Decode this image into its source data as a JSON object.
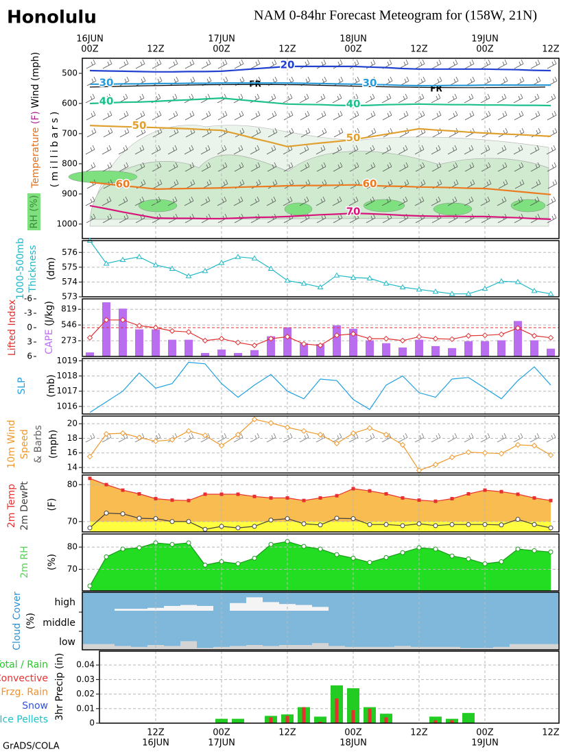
{
  "title": "Honolulu",
  "subtitle": "NAM 0-84hr Forecast Meteogram for (158W, 21N)",
  "credit": "GrADS/COLA",
  "time_axis": {
    "top_dates": [
      "16JUN",
      null,
      null,
      null,
      null,
      null,
      null,
      null,
      "17JUN",
      null,
      null,
      null,
      null,
      null,
      null,
      null,
      "18JUN",
      null,
      null,
      null,
      null,
      null,
      null,
      null,
      "19JUN",
      null,
      null,
      null,
      null
    ],
    "top_hours": [
      "00Z",
      null,
      null,
      null,
      "12Z",
      null,
      null,
      null,
      "00Z",
      null,
      null,
      null,
      "12Z",
      null,
      null,
      null,
      "00Z",
      null,
      null,
      null,
      "12Z",
      null,
      null,
      null,
      "00Z",
      null,
      null,
      null,
      "12Z"
    ],
    "bottom_hours": [
      null,
      null,
      null,
      null,
      "12Z",
      null,
      null,
      null,
      "00Z",
      null,
      null,
      null,
      "12Z",
      null,
      null,
      null,
      "00Z",
      null,
      null,
      null,
      "12Z",
      null,
      null,
      null,
      "00Z",
      null,
      null,
      null,
      "12Z"
    ],
    "bottom_dates": [
      null,
      null,
      null,
      null,
      "16JUN",
      null,
      null,
      null,
      "17JUN",
      null,
      null,
      null,
      null,
      null,
      null,
      null,
      "18JUN",
      null,
      null,
      null,
      null,
      null,
      null,
      null,
      "19JUN",
      null,
      null,
      null,
      null
    ]
  },
  "chart_data": [
    {
      "type": "line",
      "ylabel": [
        "Temperature",
        "(F)",
        "Wind (mph)"
      ],
      "ylabel2": "(millibars)",
      "shading_label": "RH (%)",
      "ylim": [
        1048,
        450
      ],
      "yticks": [
        500,
        600,
        700,
        800,
        900,
        1000
      ],
      "grid": false,
      "annotations": [
        "FR",
        "FR"
      ],
      "series": [
        {
          "name": "20",
          "color": "#2040d0",
          "values": [
            491,
            492,
            493,
            494,
            495,
            495,
            494,
            494,
            493,
            489,
            485,
            481,
            477,
            477,
            477,
            477,
            477,
            479,
            481,
            484,
            486,
            486,
            486,
            486,
            486,
            487,
            488,
            490,
            491
          ]
        },
        {
          "name": "30",
          "color": "#2a9ad8",
          "values": [
            536,
            536,
            535,
            535,
            534,
            534,
            533,
            533,
            532,
            532,
            532,
            532,
            532,
            533,
            534,
            535,
            536,
            537,
            538,
            540,
            541,
            541,
            540,
            540,
            539,
            539,
            539,
            539,
            539
          ]
        },
        {
          "name": "40",
          "color": "#1cc08c",
          "values": [
            600,
            598,
            596,
            595,
            593,
            590,
            588,
            585,
            582,
            587,
            592,
            597,
            602,
            603,
            604,
            606,
            607,
            606,
            604,
            603,
            602,
            603,
            604,
            604,
            605,
            605,
            606,
            606,
            607
          ]
        },
        {
          "name": "50",
          "color": "#e0a030",
          "values": [
            673,
            675,
            677,
            678,
            680,
            682,
            684,
            687,
            689,
            702,
            716,
            729,
            743,
            737,
            731,
            726,
            720,
            711,
            702,
            693,
            684,
            688,
            691,
            695,
            698,
            701,
            703,
            706,
            709
          ]
        },
        {
          "name": "60",
          "color": "#ec7a20",
          "values": [
            861,
            867,
            873,
            878,
            884,
            883,
            882,
            881,
            880,
            878,
            876,
            875,
            873,
            872,
            872,
            871,
            870,
            872,
            874,
            875,
            877,
            878,
            879,
            881,
            882,
            887,
            892,
            897,
            902
          ]
        },
        {
          "name": "70",
          "color": "#d8147c",
          "values": [
            939,
            949,
            960,
            970,
            980,
            981,
            981,
            982,
            982,
            980,
            978,
            977,
            975,
            972,
            969,
            967,
            964,
            966,
            968,
            971,
            973,
            974,
            974,
            975,
            975,
            977,
            979,
            982,
            984
          ]
        }
      ]
    },
    {
      "type": "line",
      "ylabel": [
        "1000-500mb",
        "Thickness",
        "(dm)"
      ],
      "ylim": [
        573,
        576.8
      ],
      "yticks": [
        573,
        574,
        575,
        576
      ],
      "grid": true,
      "series": [
        {
          "color": "#20b8c8",
          "marker": "triangle",
          "values": [
            576.8,
            575.25,
            575.5,
            575.7,
            575.15,
            574.9,
            574.4,
            574.75,
            575.3,
            575.7,
            575.6,
            574.9,
            574.1,
            573.9,
            573.65,
            574.45,
            574.3,
            574.25,
            573.9,
            573.65,
            573.5,
            573.35,
            573.2,
            573.2,
            573.55,
            574.05,
            574.0,
            573.4,
            573.2
          ]
        }
      ]
    },
    {
      "type": "combo",
      "ylabel": [
        "Lifted Index",
        "CAPE",
        "(J/kg)"
      ],
      "ylim": [
        6,
        -6
      ],
      "yticks": [
        -6,
        -3,
        0,
        3,
        6
      ],
      "y2lim": [
        0,
        1000
      ],
      "y2ticks": [
        273,
        546,
        819
      ],
      "grid": true,
      "series": [
        {
          "color": "#b96ef0",
          "axis": "y2",
          "kind": "bar",
          "values": [
            70,
            940,
            830,
            470,
            470,
            290,
            290,
            60,
            120,
            60,
            110,
            350,
            505,
            230,
            215,
            540,
            480,
            280,
            230,
            155,
            290,
            180,
            145,
            265,
            265,
            280,
            615,
            280,
            135
          ]
        },
        {
          "color": "#e03030",
          "marker": "diamond",
          "values": [
            2.1,
            -1.6,
            -1.6,
            -0.4,
            0,
            0.7,
            0.9,
            2.7,
            2.3,
            3.1,
            3.7,
            2.3,
            1.9,
            3.4,
            3.7,
            1.6,
            1.3,
            2.3,
            2.3,
            2.7,
            1.9,
            2.3,
            2.4,
            1.7,
            1.6,
            1.4,
            0.1,
            1.7,
            2.1
          ]
        }
      ]
    },
    {
      "type": "line",
      "ylabel": [
        "SLP",
        "(mb)"
      ],
      "ylim": [
        1015.5,
        1019.15
      ],
      "yticks": [
        1016,
        1017,
        1018,
        1019
      ],
      "grid": true,
      "series": [
        {
          "color": "#1ea0e0",
          "values": [
            1015.6,
            1016.3,
            1017.0,
            1018.2,
            1017.2,
            1017.5,
            1018.9,
            1018.8,
            1017.5,
            1016.6,
            1017.4,
            1018.1,
            1017.0,
            1016.5,
            1017.8,
            1017.7,
            1016.45,
            1015.8,
            1017.4,
            1018.0,
            1016.9,
            1016.6,
            1017.8,
            1017.9,
            1017.2,
            1016.5,
            1017.7,
            1018.6,
            1017.4
          ]
        }
      ]
    },
    {
      "type": "line",
      "ylabel": [
        "10m Wind",
        "Speed",
        "& Barbs",
        "(mph)"
      ],
      "ylim": [
        13.25,
        21.05
      ],
      "yticks": [
        14,
        16,
        18,
        20
      ],
      "grid": true,
      "series": [
        {
          "color": "#f0982a",
          "marker": "diamond",
          "values": [
            15.5,
            18.6,
            18.7,
            18.1,
            17.6,
            17.8,
            19.0,
            18.4,
            17.0,
            18.5,
            20.6,
            20.1,
            19.5,
            19.0,
            18.5,
            17.3,
            18.7,
            19.4,
            18.5,
            17.1,
            13.6,
            14.4,
            15.4,
            16.1,
            16.0,
            15.9,
            17.1,
            17.0,
            15.7
          ]
        }
      ]
    },
    {
      "type": "area",
      "ylabel": [
        "2m Temp",
        "2m DewPt",
        "(F)"
      ],
      "ylim": [
        67.2,
        82.6
      ],
      "yticks": [
        70,
        80
      ],
      "grid": true,
      "series": [
        {
          "color": "#e83030",
          "fill": "#f9bc50",
          "marker": "square",
          "values": [
            81.7,
            80.0,
            78.5,
            77.5,
            76.2,
            75.8,
            75.7,
            77.4,
            77.4,
            77.4,
            76.8,
            76.4,
            76.4,
            75.7,
            76.4,
            77.0,
            78.9,
            78.3,
            77.5,
            76.4,
            75.8,
            75.5,
            76.2,
            77.5,
            78.5,
            78.1,
            77.4,
            76.4,
            75.7
          ]
        },
        {
          "color": "#404040",
          "fill": "#ffff40",
          "marker": "circle",
          "values": [
            68.3,
            72.3,
            72.1,
            70.9,
            70.8,
            70.0,
            70.0,
            67.9,
            68.7,
            68.3,
            68.7,
            70.4,
            70.8,
            69.4,
            69.1,
            70.9,
            70.8,
            69.2,
            69.2,
            68.9,
            69.4,
            68.9,
            69.2,
            69.2,
            69.2,
            69.1,
            70.6,
            69.2,
            68.3
          ]
        }
      ]
    },
    {
      "type": "area",
      "ylabel": [
        "2m RH",
        "(%)"
      ],
      "ylim": [
        60.3,
        85.9
      ],
      "yticks": [
        70,
        80
      ],
      "grid": true,
      "series": [
        {
          "color": "#1a9a1a",
          "fill": "#22dd22",
          "marker": "circle",
          "values": [
            62.5,
            75.6,
            79.1,
            79.7,
            81.9,
            81.2,
            81.9,
            71.9,
            73.4,
            72.5,
            75.0,
            81.2,
            82.5,
            80.3,
            79.1,
            76.6,
            75.0,
            73.1,
            75.3,
            77.5,
            79.7,
            79.1,
            76.0,
            74.7,
            72.5,
            73.4,
            79.1,
            78.4,
            77.8
          ]
        }
      ]
    },
    {
      "type": "cloud",
      "ylabel": [
        "Cloud Cover",
        "(%)"
      ],
      "levels": [
        "high",
        "middle",
        "low"
      ],
      "color": "#80b8dc",
      "series": [
        {
          "color": "#f4f4f4",
          "level": 0,
          "values": [
            0,
            0,
            10,
            10,
            15,
            25,
            30,
            25,
            0,
            40,
            70,
            45,
            35,
            30,
            20,
            0,
            0,
            0,
            0,
            0,
            0,
            0,
            0,
            0,
            0,
            0,
            0,
            0,
            0
          ]
        },
        {
          "color": "#d4d4d4",
          "level": 2,
          "values": [
            30,
            30,
            20,
            15,
            25,
            20,
            45,
            10,
            15,
            20,
            25,
            20,
            25,
            25,
            35,
            20,
            15,
            15,
            15,
            20,
            15,
            15,
            15,
            10,
            10,
            15,
            30,
            30,
            30
          ]
        }
      ]
    },
    {
      "type": "bar",
      "ylabel": [
        "3hr Precip (in)"
      ],
      "ylim": [
        0,
        0.0495
      ],
      "yticks": [
        0,
        0.01,
        0.02,
        0.03,
        0.04
      ],
      "grid": true,
      "series": [
        {
          "name": "Total / Rain",
          "color": "#22cc22",
          "values": [
            0,
            0,
            0,
            0,
            0,
            0,
            0,
            0,
            0.003,
            0.003,
            0,
            0.005,
            0.006,
            0.011,
            0.0045,
            0.026,
            0.024,
            0.011,
            0.0065,
            0,
            0,
            0.0045,
            0.003,
            0.007,
            0,
            0,
            0,
            0,
            0
          ]
        },
        {
          "name": "Convective",
          "color": "#e83030",
          "values": [
            0,
            0,
            0,
            0,
            0,
            0,
            0,
            0,
            0,
            0,
            0,
            0.004,
            0.005,
            0.011,
            0.001,
            0.017,
            0.009,
            0.01,
            0.004,
            0,
            0,
            0.002,
            0.002,
            0,
            0,
            0,
            0,
            0,
            0
          ]
        },
        {
          "name": "Frzg. Rain",
          "color": "#f09030",
          "values": [
            0,
            0,
            0,
            0,
            0,
            0,
            0,
            0,
            0,
            0,
            0,
            0,
            0,
            0,
            0,
            0,
            0,
            0,
            0,
            0,
            0,
            0,
            0,
            0,
            0,
            0,
            0,
            0,
            0
          ]
        },
        {
          "name": "Snow",
          "color": "#3050e0",
          "values": [
            0,
            0,
            0,
            0,
            0,
            0,
            0,
            0,
            0,
            0,
            0,
            0,
            0,
            0,
            0,
            0,
            0,
            0,
            0,
            0,
            0,
            0,
            0,
            0,
            0,
            0,
            0,
            0,
            0
          ]
        },
        {
          "name": "Ice Pellets",
          "color": "#20c0c8",
          "values": [
            0,
            0,
            0,
            0,
            0,
            0,
            0,
            0,
            0,
            0,
            0,
            0,
            0,
            0,
            0,
            0,
            0,
            0,
            0,
            0,
            0,
            0,
            0,
            0,
            0,
            0,
            0,
            0,
            0
          ]
        }
      ]
    }
  ]
}
